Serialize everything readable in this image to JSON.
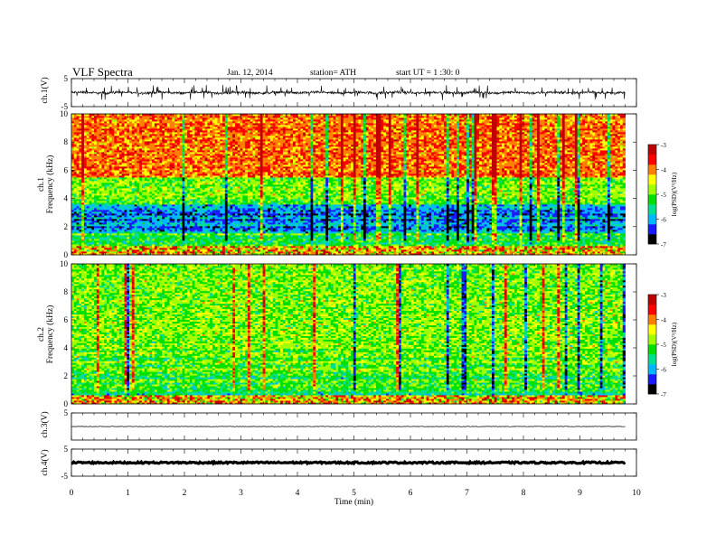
{
  "header": {
    "title": "VLF  Spectra",
    "date": "Jan. 12, 2014",
    "station": "station= ATH",
    "start": "start  UT  =   1  :30: 0"
  },
  "colors": {
    "colormap": [
      "#000000",
      "#1a1aff",
      "#00b8ff",
      "#00e090",
      "#00e000",
      "#a0ff00",
      "#ffff00",
      "#ff8000",
      "#ff0000",
      "#c00000"
    ],
    "trace": "#000000",
    "frame": "#000000"
  },
  "chart_data": [
    {
      "type": "line",
      "name": "ch1-waveform",
      "ylabel": "ch.1(V)",
      "ylim": [
        -5,
        5
      ],
      "yticks": [
        "5",
        "-5"
      ],
      "xlim": [
        0,
        10
      ],
      "signal_extent": 9.8,
      "baseline": 0,
      "amplitude_range": [
        -2.5,
        2.5
      ]
    },
    {
      "type": "heatmap",
      "name": "ch1-spectrogram",
      "ylabel": "ch.1\nFrequency (kHz)",
      "ylim": [
        0,
        10
      ],
      "yticks": [
        "0",
        "2",
        "4",
        "6",
        "8",
        "10"
      ],
      "xlim": [
        0,
        10
      ],
      "signal_extent": 9.8,
      "colorbar": {
        "label": "log(PSD)(V²/Hz)",
        "range": [
          -7,
          -3
        ],
        "ticks": [
          "-3",
          "-4",
          "-5",
          "-6",
          "-7"
        ]
      },
      "bands": [
        {
          "from": 0,
          "to": 1.5,
          "mean": -5.2
        },
        {
          "from": 1.5,
          "to": 3.6,
          "mean": -6.1
        },
        {
          "from": 3.6,
          "to": 5.5,
          "mean": -4.9
        },
        {
          "from": 5.5,
          "to": 10,
          "mean": -3.9
        }
      ]
    },
    {
      "type": "heatmap",
      "name": "ch2-spectrogram",
      "ylabel": "ch.2\nFrequency (kHz)",
      "ylim": [
        0,
        10
      ],
      "yticks": [
        "0",
        "2",
        "4",
        "6",
        "8",
        "10"
      ],
      "xlim": [
        0,
        10
      ],
      "signal_extent": 9.8,
      "colorbar": {
        "label": "log(PSD)(V²/Hz)",
        "range": [
          -7,
          -3
        ],
        "ticks": [
          "-3",
          "-4",
          "-5",
          "-6",
          "-7"
        ]
      },
      "bands": [
        {
          "from": 0,
          "to": 2,
          "mean": -5.3
        },
        {
          "from": 2,
          "to": 4,
          "mean": -5.0
        },
        {
          "from": 4,
          "to": 10,
          "mean": -4.9
        }
      ]
    },
    {
      "type": "line",
      "name": "ch3-waveform",
      "ylabel": "ch.3(V)",
      "ylim": [
        -5,
        5
      ],
      "yticks": [
        "5"
      ],
      "xlim": [
        0,
        10
      ],
      "signal_extent": 9.8,
      "baseline": 0,
      "amplitude_range": [
        -0.1,
        0.1
      ]
    },
    {
      "type": "line",
      "name": "ch4-waveform",
      "ylabel": "ch.4(V)",
      "ylim": [
        -5,
        5
      ],
      "yticks": [
        "5",
        "-5"
      ],
      "xlim": [
        0,
        10
      ],
      "signal_extent": 9.8,
      "baseline": 0,
      "amplitude_range": [
        -0.3,
        0.3
      ],
      "xlabel": "Time  (min)",
      "xticks": [
        "0",
        "1",
        "2",
        "3",
        "4",
        "5",
        "6",
        "7",
        "8",
        "9",
        "10"
      ]
    }
  ]
}
